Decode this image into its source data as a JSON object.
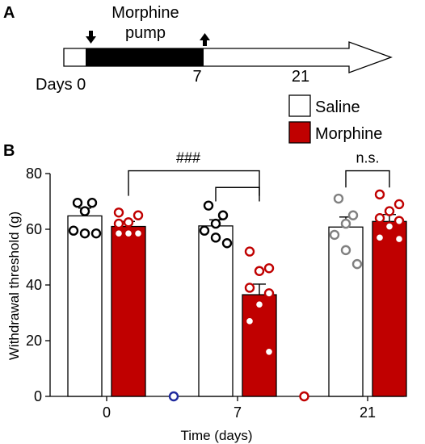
{
  "panel_a": {
    "letter": "A",
    "pump_label_line1": "Morphine",
    "pump_label_line2": "pump",
    "timeline_ticks": [
      {
        "label": "Days 0",
        "day": 0
      },
      {
        "label": "7",
        "day": 7
      },
      {
        "label": "21",
        "day": 21
      }
    ],
    "pump_start_day": 0,
    "pump_end_day": 7,
    "arrows": [
      "down-arrow-icon",
      "up-arrow-icon"
    ]
  },
  "panel_b": {
    "letter": "B"
  },
  "chart_data": {
    "type": "bar",
    "ylabel": "Withdrawal threshold (g)",
    "xlabel": "Time (days)",
    "ylim": [
      0,
      80
    ],
    "yticks": [
      0,
      20,
      40,
      60,
      80
    ],
    "categories": [
      "0",
      "7",
      "21"
    ],
    "series": [
      {
        "name": "Saline",
        "color": "#ffffff",
        "values": [
          64.8,
          61.2,
          60.8
        ],
        "sem": [
          2.8,
          2.2,
          3.6
        ],
        "points": [
          [
            69.5,
            69.5,
            66.5,
            59.5,
            58.5,
            58.5
          ],
          [
            68.5,
            65,
            62,
            59.5,
            57,
            55
          ],
          [
            71,
            65,
            62,
            58,
            52.5,
            47.5
          ]
        ],
        "point_colors": [
          "#000000",
          "#000000",
          "#808080"
        ]
      },
      {
        "name": "Morphine",
        "color": "#c00000",
        "values": [
          61,
          36.5,
          62.8
        ],
        "sem": [
          1.8,
          3.8,
          2.5
        ],
        "points": [
          [
            66,
            65,
            62.5,
            62,
            59,
            58.5,
            58.5,
            58.5
          ],
          [
            52,
            46,
            45,
            39,
            37,
            33,
            27,
            16
          ],
          [
            72.5,
            69,
            66.5,
            64,
            63,
            61,
            57,
            56.5
          ]
        ],
        "point_colors": [
          "#c00000",
          "#c00000",
          "#c00000"
        ]
      }
    ],
    "zero_markers": [
      {
        "between": [
          "0",
          "7"
        ],
        "value": 0,
        "color": "#1f2a9e"
      },
      {
        "between": [
          "7",
          "21"
        ],
        "value": 0,
        "color": "#c00000"
      }
    ],
    "annotations": [
      {
        "text": "###",
        "comparison": "Morphine day 0 vs Morphine day 7"
      },
      {
        "text": "",
        "comparison": "Saline day 7 vs Morphine day 7"
      },
      {
        "text": "n.s.",
        "comparison": "Saline day 21 vs Morphine day 21"
      }
    ],
    "legend": {
      "placement": "top-right"
    }
  }
}
